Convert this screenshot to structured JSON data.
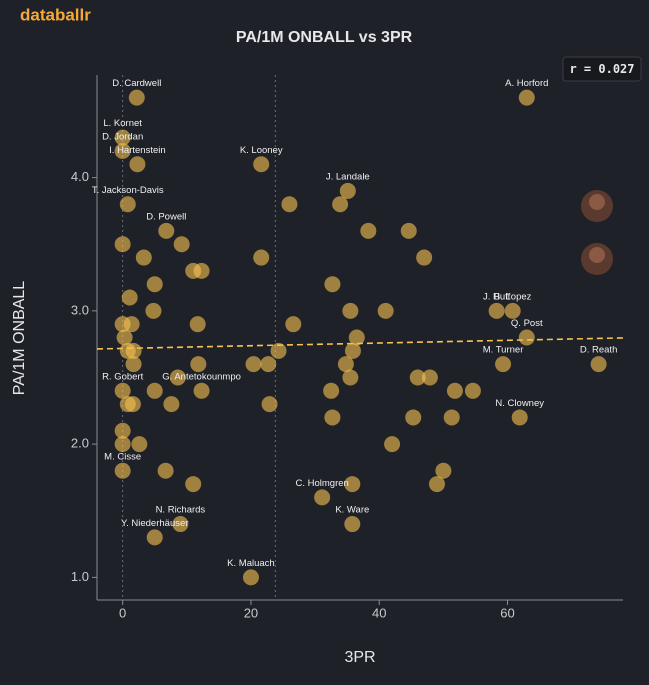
{
  "brand": "databallr",
  "chart_data": {
    "type": "scatter",
    "title": "PA/1M ONBALL vs 3PR",
    "x_label": "3PR",
    "y_label": "PA/1M ONBALL",
    "annotation": "r = 0.027",
    "color": "#f7c250",
    "xlim": [
      -4,
      78
    ],
    "ylim": [
      0.83,
      4.77
    ],
    "xticks": [
      0,
      20,
      40,
      60
    ],
    "yticks": [
      {
        "value": 1,
        "label": "1.0"
      },
      {
        "value": 2,
        "label": "2.0"
      },
      {
        "value": 3,
        "label": "3.0"
      },
      {
        "value": 4,
        "label": "4.0"
      }
    ],
    "reference_x": [
      0,
      23.8
    ],
    "trend": {
      "x": [
        -4,
        78
      ],
      "y": [
        2.714,
        2.797
      ],
      "color": "#f7c250"
    },
    "x": [
      2.2,
      63,
      0,
      0,
      2.3,
      21.6,
      35.1,
      0.8,
      6.8,
      58.3,
      60.8,
      63,
      59.3,
      74.2,
      0,
      12.3,
      61.9,
      0,
      31.1,
      35.8,
      9.0,
      5.0,
      20,
      26,
      33.9,
      38.3,
      44.6,
      47,
      3.3,
      0,
      9.2,
      21.6,
      11,
      12.3,
      5,
      32.7,
      1.1,
      4.8,
      35.5,
      41,
      0,
      1.4,
      11.7,
      26.6,
      0.3,
      36.5,
      0.8,
      1.7,
      24.3,
      35.9,
      1.7,
      11.8,
      20.4,
      22.7,
      34.8,
      8.6,
      35.5,
      46,
      47.9,
      5,
      32.5,
      51.8,
      54.6,
      0.8,
      1.6,
      7.6,
      22.9,
      32.7,
      45.3,
      51.3,
      0,
      0,
      2.6,
      42,
      6.7,
      50,
      11,
      35.8,
      49
    ],
    "y": [
      4.6,
      4.6,
      4.3,
      4.2,
      4.1,
      4.1,
      3.9,
      3.8,
      3.6,
      3.0,
      3.0,
      2.8,
      2.6,
      2.6,
      2.4,
      2.4,
      2.2,
      1.8,
      1.6,
      1.4,
      1.4,
      1.3,
      1.0,
      3.8,
      3.8,
      3.6,
      3.6,
      3.4,
      3.4,
      3.5,
      3.5,
      3.4,
      3.3,
      3.3,
      3.2,
      3.2,
      3.1,
      3.0,
      3.0,
      3.0,
      2.9,
      2.9,
      2.9,
      2.9,
      2.8,
      2.8,
      2.7,
      2.7,
      2.7,
      2.7,
      2.6,
      2.6,
      2.6,
      2.6,
      2.6,
      2.5,
      2.5,
      2.5,
      2.5,
      2.4,
      2.4,
      2.4,
      2.4,
      2.3,
      2.3,
      2.3,
      2.3,
      2.2,
      2.2,
      2.2,
      2.1,
      2.0,
      2.0,
      2.0,
      1.8,
      1.8,
      1.7,
      1.7,
      1.7
    ],
    "labels": [
      "D. Cardwell",
      "A. Horford",
      "L. Kornet",
      "D. Jordan",
      "I. Hartenstein",
      "K. Looney",
      "J. Landale",
      "T. Jackson-Davis",
      "D. Powell",
      "J. Huff",
      "B. Lopez",
      "Q. Post",
      "M. Turner",
      "D. Reath",
      "R. Gobert",
      "G. Antetokounmpo",
      "N. Clowney",
      "M. Cisse",
      "C. Holmgren",
      "K. Ware",
      "N. Richards",
      "Y. Niederhäuser",
      "K. Maluach",
      null,
      null,
      null,
      null,
      null,
      null,
      null,
      null,
      null,
      null,
      null,
      null,
      null,
      null,
      null,
      null,
      null,
      null,
      null,
      null,
      null,
      null,
      null,
      null,
      null,
      null,
      null,
      null,
      null,
      null,
      null,
      null,
      null,
      null,
      null,
      null,
      null,
      null,
      null,
      null,
      null,
      null,
      null,
      null,
      null,
      null,
      null,
      null,
      null,
      null,
      null,
      null,
      null,
      null,
      null,
      null
    ]
  }
}
